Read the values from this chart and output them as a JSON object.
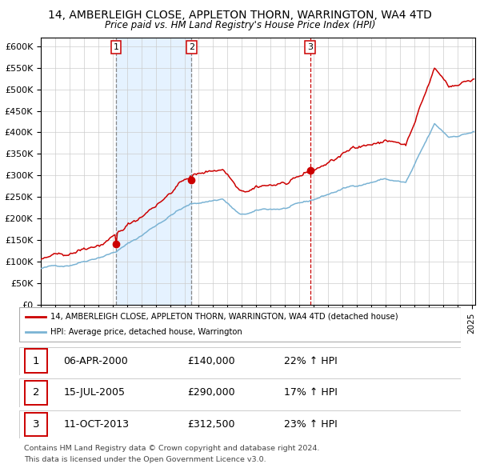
{
  "title": "14, AMBERLEIGH CLOSE, APPLETON THORN, WARRINGTON, WA4 4TD",
  "subtitle": "Price paid vs. HM Land Registry's House Price Index (HPI)",
  "legend_line1": "14, AMBERLEIGH CLOSE, APPLETON THORN, WARRINGTON, WA4 4TD (detached house)",
  "legend_line2": "HPI: Average price, detached house, Warrington",
  "purchase1_date": "06-APR-2000",
  "purchase1_price": 140000,
  "purchase1_pct": "22%",
  "purchase2_date": "15-JUL-2005",
  "purchase2_price": 290000,
  "purchase2_pct": "17%",
  "purchase3_date": "11-OCT-2013",
  "purchase3_price": 312500,
  "purchase3_pct": "23%",
  "footer1": "Contains HM Land Registry data © Crown copyright and database right 2024.",
  "footer2": "This data is licensed under the Open Government Licence v3.0.",
  "hpi_color": "#7ab3d4",
  "price_color": "#cc0000",
  "dot_color": "#cc0000",
  "bg_band_color": "#ddeeff",
  "ylim": [
    0,
    620000
  ],
  "yticks": [
    0,
    50000,
    100000,
    150000,
    200000,
    250000,
    300000,
    350000,
    400000,
    450000,
    500000,
    550000,
    600000
  ]
}
